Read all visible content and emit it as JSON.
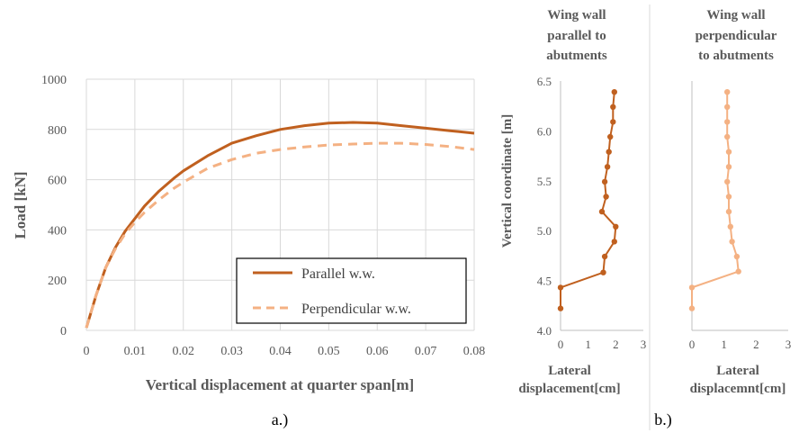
{
  "colors": {
    "parallel": "#c0601f",
    "perpendicular": "#f4b183",
    "grid": "#d9d9d9",
    "text": "#595959"
  },
  "captions": {
    "a": "a.)",
    "b": "b.)"
  },
  "chart_data": [
    {
      "type": "line",
      "xlabel": "Vertical displacement at quarter span[m]",
      "ylabel": "Load [kN]",
      "xlim": [
        0,
        0.08
      ],
      "ylim": [
        0,
        1000
      ],
      "x_ticks": [
        "0",
        "0.01",
        "0.02",
        "0.03",
        "0.04",
        "0.05",
        "0.06",
        "0.07",
        "0.08"
      ],
      "y_ticks": [
        "0",
        "200",
        "400",
        "600",
        "800",
        "1000"
      ],
      "grid": true,
      "legend_position": "bottom-right",
      "series": [
        {
          "name": "Parallel w.w.",
          "style": "solid",
          "x": [
            0,
            0.002,
            0.004,
            0.006,
            0.008,
            0.01,
            0.012,
            0.015,
            0.018,
            0.02,
            0.025,
            0.03,
            0.035,
            0.04,
            0.045,
            0.05,
            0.055,
            0.06,
            0.065,
            0.07,
            0.075,
            0.08
          ],
          "y": [
            10,
            140,
            250,
            330,
            395,
            445,
            495,
            555,
            605,
            635,
            695,
            745,
            775,
            800,
            815,
            825,
            828,
            825,
            815,
            805,
            795,
            785
          ]
        },
        {
          "name": "Perpendicular w.w.",
          "style": "dashed",
          "x": [
            0,
            0.002,
            0.004,
            0.006,
            0.008,
            0.01,
            0.012,
            0.015,
            0.018,
            0.02,
            0.025,
            0.03,
            0.035,
            0.04,
            0.045,
            0.05,
            0.055,
            0.06,
            0.065,
            0.07,
            0.075,
            0.08
          ],
          "y": [
            10,
            140,
            250,
            325,
            385,
            430,
            470,
            520,
            565,
            590,
            645,
            680,
            705,
            720,
            730,
            738,
            742,
            745,
            745,
            740,
            732,
            720
          ]
        }
      ]
    },
    {
      "type": "line",
      "title": "Wing wall parallel to abutments",
      "title_lines": [
        "Wing wall",
        "parallel to",
        "abutments"
      ],
      "xlabel_lines": [
        "Lateral",
        "displacement[cm]"
      ],
      "ylabel": "Vertical coordinate [m]",
      "xlim": [
        0,
        3
      ],
      "ylim": [
        4.0,
        6.5
      ],
      "x_ticks": [
        "0",
        "1",
        "2",
        "3"
      ],
      "y_ticks": [
        "4.0",
        "4.5",
        "5.0",
        "5.5",
        "6.0",
        "6.5"
      ],
      "series": [
        {
          "color_key": "parallel",
          "x": [
            0,
            0,
            1.55,
            1.6,
            1.95,
            2.0,
            1.5,
            1.65,
            1.6,
            1.7,
            1.75,
            1.8,
            1.9,
            1.9,
            1.95
          ],
          "y": [
            4.22,
            4.43,
            4.58,
            4.74,
            4.89,
            5.04,
            5.19,
            5.34,
            5.49,
            5.64,
            5.79,
            5.94,
            6.09,
            6.24,
            6.39
          ]
        }
      ]
    },
    {
      "type": "line",
      "title": "Wing wall perpendicular to abutments",
      "title_lines": [
        "Wing wall",
        "perpendicular",
        "to abutments"
      ],
      "xlabel_lines": [
        "Lateral",
        "displacemnt[cm]"
      ],
      "xlim": [
        0,
        3
      ],
      "ylim": [
        4.0,
        6.5
      ],
      "x_ticks": [
        "0",
        "1",
        "2",
        "3"
      ],
      "series": [
        {
          "color_key": "perpendicular",
          "x": [
            0,
            0,
            1.45,
            1.4,
            1.25,
            1.2,
            1.15,
            1.15,
            1.1,
            1.15,
            1.15,
            1.1,
            1.1,
            1.1,
            1.1
          ],
          "y": [
            4.22,
            4.43,
            4.59,
            4.74,
            4.89,
            5.04,
            5.19,
            5.34,
            5.49,
            5.64,
            5.79,
            5.94,
            6.09,
            6.24,
            6.39
          ]
        }
      ]
    }
  ]
}
